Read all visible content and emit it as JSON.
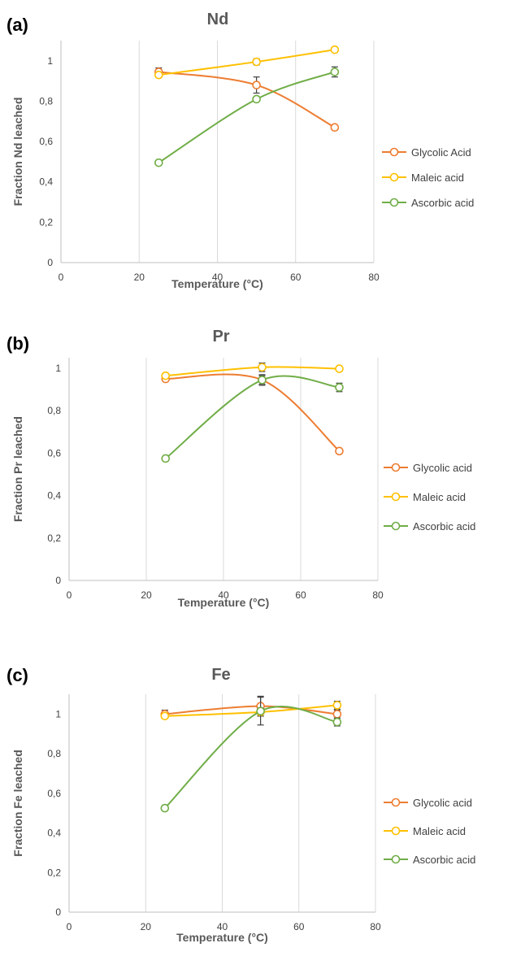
{
  "chart_data": [
    {
      "type": "line",
      "panel_label": "(a)",
      "title": "Nd",
      "xlabel": "Temperature (°C)",
      "ylabel": "Fraction Nd leached",
      "xlim": [
        0,
        80
      ],
      "ylim": [
        0,
        1.1
      ],
      "xticks": [
        "0",
        "20",
        "40",
        "60",
        "80"
      ],
      "yticks": [
        "0",
        "0,2",
        "0,4",
        "0,6",
        "0,8",
        "1"
      ],
      "grid": "vertical",
      "legend_position": "right",
      "x": [
        25,
        50,
        70
      ],
      "series": [
        {
          "name": "Glycolic Acid",
          "color": "#ED7D31",
          "values": [
            0.945,
            0.88,
            0.67
          ],
          "error": [
            0.02,
            0.04,
            0.01
          ]
        },
        {
          "name": "Maleic acid",
          "color": "#FFC000",
          "values": [
            0.93,
            0.995,
            1.055
          ],
          "error": [
            0.01,
            0.015,
            0.01
          ]
        },
        {
          "name": "Ascorbic  acid",
          "color": "#70AD47",
          "values": [
            0.495,
            0.81,
            0.945
          ],
          "error": [
            0.01,
            0.01,
            0.025
          ]
        }
      ]
    },
    {
      "type": "line",
      "panel_label": "(b)",
      "title": "Pr",
      "xlabel": "Temperature (°C)",
      "ylabel": "Fraction Pr leached",
      "xlim": [
        0,
        80
      ],
      "ylim": [
        0,
        1.05
      ],
      "xticks": [
        "0",
        "20",
        "40",
        "60",
        "80"
      ],
      "yticks": [
        "0",
        "0,2",
        "0,4",
        "0,6",
        "0,8",
        "1"
      ],
      "grid": "vertical",
      "legend_position": "right",
      "x": [
        25,
        50,
        70
      ],
      "series": [
        {
          "name": "Glycolic acid",
          "color": "#ED7D31",
          "values": [
            0.95,
            0.945,
            0.61
          ],
          "error": [
            0.01,
            0.02,
            0.01
          ]
        },
        {
          "name": "Maleic acid",
          "color": "#FFC000",
          "values": [
            0.965,
            1.005,
            0.998
          ],
          "error": [
            0.01,
            0.02,
            0.01
          ]
        },
        {
          "name": "Ascorbic acid",
          "color": "#70AD47",
          "values": [
            0.575,
            0.945,
            0.91
          ],
          "error": [
            0.01,
            0.025,
            0.02
          ]
        }
      ]
    },
    {
      "type": "line",
      "panel_label": "(c)",
      "title": "Fe",
      "xlabel": "Temperature (°C)",
      "ylabel": "Fraction Fe leached",
      "xlim": [
        0,
        80
      ],
      "ylim": [
        0,
        1.1
      ],
      "xticks": [
        "0",
        "20",
        "40",
        "60",
        "80"
      ],
      "yticks": [
        "0",
        "0,2",
        "0,4",
        "0,6",
        "0,8",
        "1"
      ],
      "grid": "vertical",
      "legend_position": "right",
      "x": [
        25,
        50,
        70
      ],
      "series": [
        {
          "name": "Glycolic acid",
          "color": "#ED7D31",
          "values": [
            1.0,
            1.04,
            1.0
          ],
          "error": [
            0.02,
            0.05,
            0.02
          ]
        },
        {
          "name": "Maleic acid",
          "color": "#FFC000",
          "values": [
            0.99,
            1.01,
            1.045
          ],
          "error": [
            0.01,
            0.02,
            0.02
          ]
        },
        {
          "name": "Ascorbic acid",
          "color": "#70AD47",
          "values": [
            0.525,
            1.015,
            0.96
          ],
          "error": [
            0.01,
            0.07,
            0.02
          ]
        }
      ]
    }
  ]
}
